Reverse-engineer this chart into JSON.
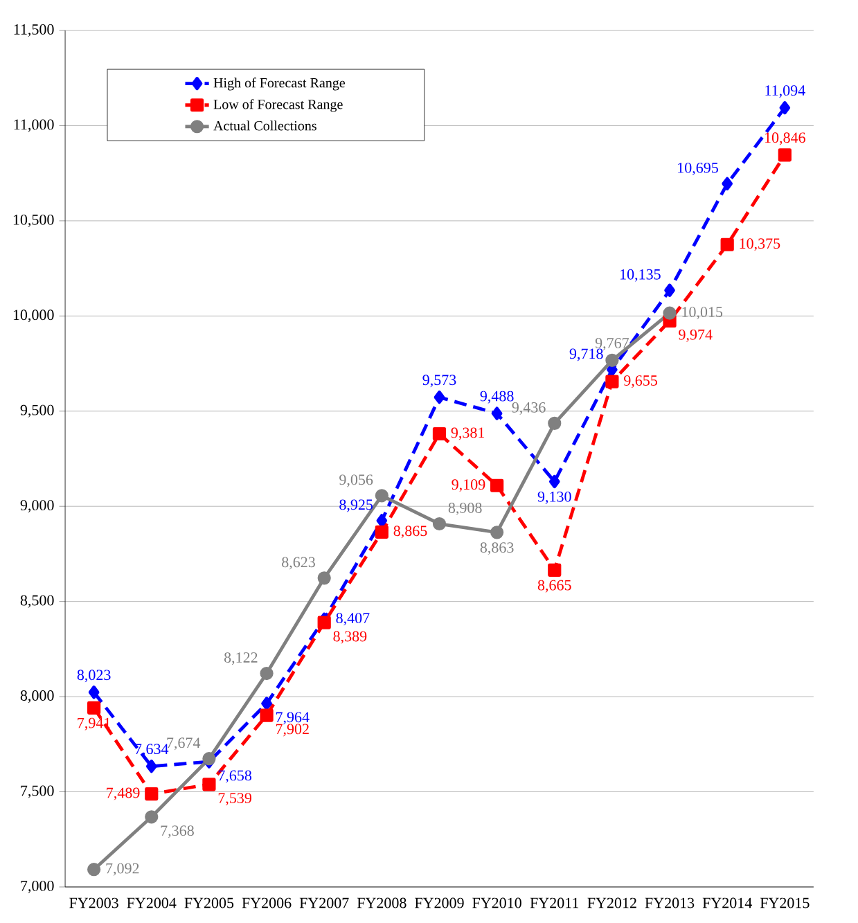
{
  "chart_data": {
    "type": "line",
    "categories": [
      "FY2003",
      "FY2004",
      "FY2005",
      "FY2006",
      "FY2007",
      "FY2008",
      "FY2009",
      "FY2010",
      "FY2011",
      "FY2012",
      "FY2013",
      "FY2014",
      "FY2015"
    ],
    "series": [
      {
        "name": "High of Forecast Range",
        "color": "#0000ff",
        "marker": "diamond",
        "line_style": "dashed",
        "values": [
          8023,
          7634,
          7658,
          7964,
          8407,
          8925,
          9573,
          9488,
          9130,
          9718,
          10135,
          10695,
          11094
        ],
        "value_labels": [
          "8,023",
          "7,634",
          "7,658",
          "7,964",
          "8,407",
          "8,925",
          "9,573",
          "9,488",
          "9,130",
          "9,718",
          "10,135",
          "10,695",
          "11,094"
        ]
      },
      {
        "name": "Low of Forecast Range",
        "color": "#ff0000",
        "marker": "square",
        "line_style": "dashed",
        "values": [
          7941,
          7489,
          7539,
          7902,
          8389,
          8865,
          9381,
          9109,
          8665,
          9655,
          9974,
          10375,
          10846
        ],
        "value_labels": [
          "7,941",
          "7,489",
          "7,539",
          "7,902",
          "8,389",
          "8,865",
          "9,381",
          "9,109",
          "8,665",
          "9,655",
          "9,974",
          "10,375",
          "10,846"
        ]
      },
      {
        "name": "Actual Collections",
        "color": "#808080",
        "marker": "circle",
        "line_style": "solid",
        "values": [
          7092,
          7368,
          7674,
          8122,
          8623,
          9056,
          8908,
          8863,
          9436,
          9767,
          10015,
          null,
          null
        ],
        "value_labels": [
          "7,092",
          "7,368",
          "7,674",
          "8,122",
          "8,623",
          "9,056",
          "8,908",
          "8,863",
          "9,436",
          "9,767",
          "10,015",
          null,
          null
        ]
      }
    ],
    "ylim": [
      7000,
      11500
    ],
    "yticks": [
      {
        "value": 7000,
        "label": "7,000"
      },
      {
        "value": 7500,
        "label": "7,500"
      },
      {
        "value": 8000,
        "label": "8,000"
      },
      {
        "value": 8500,
        "label": "8,500"
      },
      {
        "value": 9000,
        "label": "9,000"
      },
      {
        "value": 9500,
        "label": "9,500"
      },
      {
        "value": 10000,
        "label": "10,000"
      },
      {
        "value": 10500,
        "label": "10,500"
      },
      {
        "value": 11000,
        "label": "11,000"
      },
      {
        "value": 11500,
        "label": "11,500"
      }
    ],
    "grid": "y",
    "legend": "top left"
  }
}
